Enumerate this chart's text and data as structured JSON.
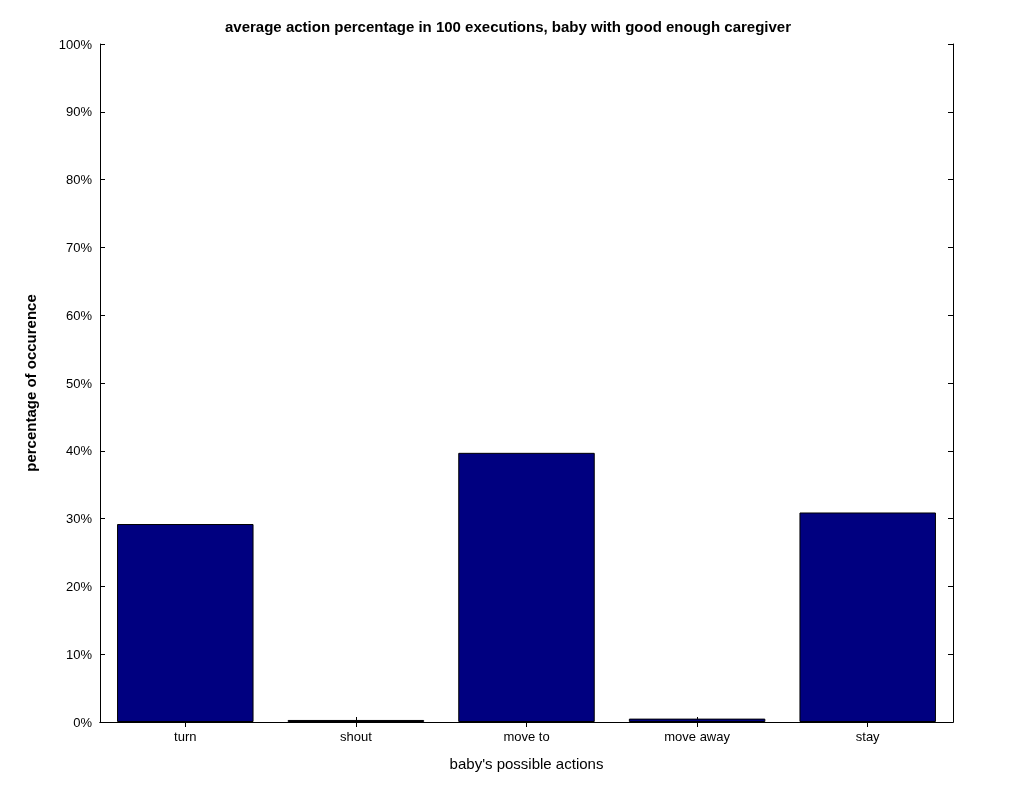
{
  "chart_data": {
    "type": "bar",
    "title": "average action percentage in 100 executions, baby with good enough caregiver",
    "xlabel": "baby's possible actions",
    "ylabel": "percentage of occurence",
    "categories": [
      "turn",
      "shout",
      "move to",
      "move away",
      "stay"
    ],
    "values": [
      29.2,
      0.3,
      39.7,
      0.5,
      30.9
    ],
    "color": "#000080",
    "ylim": [
      0,
      100
    ],
    "yticks": [
      {
        "value": 0,
        "label": "0%"
      },
      {
        "value": 10,
        "label": "10%"
      },
      {
        "value": 20,
        "label": "20%"
      },
      {
        "value": 30,
        "label": "30%"
      },
      {
        "value": 40,
        "label": "40%"
      },
      {
        "value": 50,
        "label": "50%"
      },
      {
        "value": 60,
        "label": "60%"
      },
      {
        "value": 70,
        "label": "70%"
      },
      {
        "value": 80,
        "label": "80%"
      },
      {
        "value": 90,
        "label": "90%"
      },
      {
        "value": 100,
        "label": "100%"
      }
    ],
    "grid": false
  }
}
